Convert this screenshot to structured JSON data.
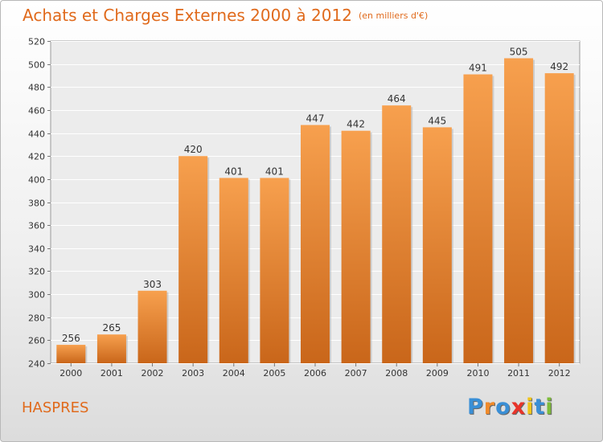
{
  "chart_data": {
    "type": "bar",
    "title": "Achats et Charges Externes 2000 à 2012",
    "subtitle": "(en milliers d'€)",
    "categories": [
      "2000",
      "2001",
      "2002",
      "2003",
      "2004",
      "2005",
      "2006",
      "2007",
      "2008",
      "2009",
      "2010",
      "2011",
      "2012"
    ],
    "values": [
      256,
      265,
      303,
      420,
      401,
      401,
      447,
      442,
      464,
      445,
      491,
      505,
      492
    ],
    "ylim": [
      240,
      520
    ],
    "yticks": [
      240,
      260,
      280,
      300,
      320,
      340,
      360,
      380,
      400,
      420,
      440,
      460,
      480,
      500,
      520
    ],
    "grid": true,
    "bar_color_top": "#f7a04e",
    "bar_color_bottom": "#c9661a"
  },
  "commune": "HASPRES",
  "logo": {
    "letters": [
      "P",
      "r",
      "o",
      "x",
      "i",
      "t",
      "i"
    ],
    "colors": [
      "#3a8fd6",
      "#f08a2a",
      "#3a8fd6",
      "#e8342a",
      "#f0c419",
      "#3a8fd6",
      "#7dbb3a"
    ]
  },
  "accent_color": "#e06a1c"
}
